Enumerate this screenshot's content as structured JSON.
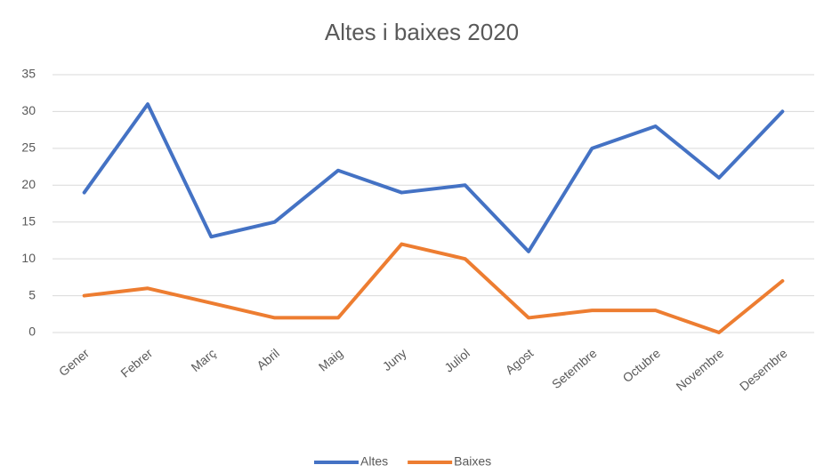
{
  "chart_data": {
    "type": "line",
    "title": "Altes i baixes 2020",
    "categories": [
      "Gener",
      "Febrer",
      "Març",
      "Abril",
      "Maig",
      "Juny",
      "Juliol",
      "Agost",
      "Setembre",
      "Octubre",
      "Novembre",
      "Desembre"
    ],
    "series": [
      {
        "name": "Altes",
        "color": "#4472c4",
        "values": [
          19,
          31,
          13,
          15,
          22,
          19,
          20,
          11,
          25,
          28,
          21,
          30
        ]
      },
      {
        "name": "Baixes",
        "color": "#ed7d31",
        "values": [
          5,
          6,
          4,
          2,
          2,
          12,
          10,
          2,
          3,
          3,
          0,
          7
        ]
      }
    ],
    "ylim": [
      0,
      35
    ],
    "yticks": [
      0,
      5,
      10,
      15,
      20,
      25,
      30,
      35
    ],
    "grid": true,
    "legend": "bottom"
  }
}
